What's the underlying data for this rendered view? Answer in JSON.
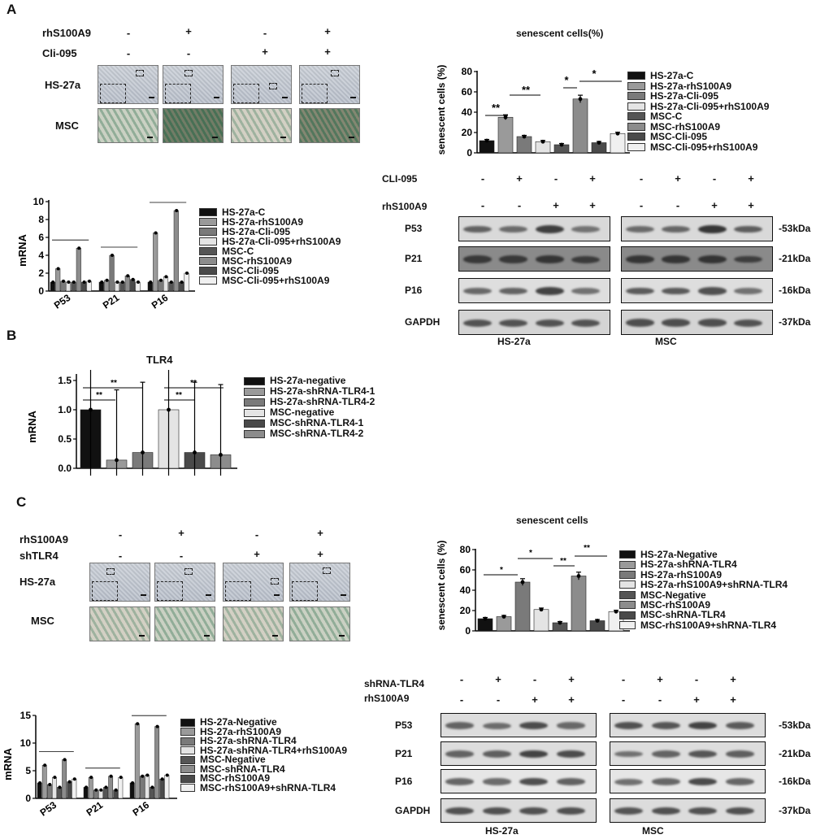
{
  "panels": {
    "A": "A",
    "B": "B",
    "C": "C"
  },
  "panelA": {
    "row_labels": [
      "rhS100A9",
      "Cli-095"
    ],
    "signs": [
      [
        "-",
        "+",
        "-",
        "+"
      ],
      [
        "-",
        "-",
        "+",
        "+"
      ]
    ],
    "image_labels": [
      "HS-27a",
      "MSC"
    ],
    "senescent_title": "senescent cells(%)",
    "senescent_ylabel": "senescent cells (%)",
    "senescent_legend": [
      "HS-27a-C",
      "HS-27a-rhS100A9",
      "HS-27a-Cli-095",
      "HS-27a-Cli-095+rhS100A9",
      "MSC-C",
      "MSC-rhS100A9",
      "MSC-Cli-095",
      "MSC-Cli-095+rhS100A9"
    ],
    "mrna_ylabel": "mRNA",
    "mrna_legend": [
      "HS-27a-C",
      "HS-27a-rhS100A9",
      "HS-27a-Cli-095",
      "HS-27a-Cli-095+rhS100A9",
      "MSC-C",
      "MSC-rhS100A9",
      "MSC-Cli-095",
      "MSC-Cli-095+rhS100A9"
    ],
    "wb_row_labels": [
      "CLI-095",
      "rhS100A9"
    ],
    "wb_signs": [
      [
        "-",
        "+",
        "-",
        "+",
        "-",
        "+",
        "-",
        "+"
      ],
      [
        "-",
        "-",
        "+",
        "+",
        "-",
        "-",
        "+",
        "+"
      ]
    ],
    "wb_proteins": [
      "P53",
      "P21",
      "P16",
      "GAPDH"
    ],
    "wb_sizes": [
      "-53kDa",
      "-21kDa",
      "-16kDa",
      "-37kDa"
    ],
    "wb_groups": [
      "HS-27a",
      "MSC"
    ]
  },
  "panelB": {
    "title": "TLR4",
    "ylabel": "mRNA",
    "legend": [
      "HS-27a-negative",
      "HS-27a-shRNA-TLR4-1",
      "HS-27a-shRNA-TLR4-2",
      "MSC-negative",
      "MSC-shRNA-TLR4-1",
      "MSC-shRNA-TLR4-2"
    ]
  },
  "panelC": {
    "row_labels": [
      "rhS100A9",
      "shTLR4"
    ],
    "signs": [
      [
        "-",
        "+",
        "-",
        "+"
      ],
      [
        "-",
        "-",
        "+",
        "+"
      ]
    ],
    "image_labels": [
      "HS-27a",
      "MSC"
    ],
    "senescent_title": "senescent cells",
    "senescent_ylabel": "senescent cells (%)",
    "senescent_legend": [
      "HS-27a-Negative",
      "HS-27a-shRNA-TLR4",
      "HS-27a-rhS100A9",
      "HS-27a-rhS100A9+shRNA-TLR4",
      "MSC-Negative",
      "MSC-rhS100A9",
      "MSC-shRNA-TLR4",
      "MSC-rhS100A9+shRNA-TLR4"
    ],
    "mrna_ylabel": "mRNA",
    "mrna_legend": [
      "HS-27a-Negative",
      "HS-27a-rhS100A9",
      "HS-27a-shRNA-TLR4",
      "HS-27a-shRNA-TLR4+rhS100A9",
      "MSC-Negative",
      "MSC-shRNA-TLR4",
      "MSC-rhS100A9",
      "MSC-rhS100A9+shRNA-TLR4"
    ],
    "wb_row_labels": [
      "shRNA-TLR4",
      "rhS100A9"
    ],
    "wb_signs": [
      [
        "-",
        "+",
        "-",
        "+",
        "-",
        "+",
        "-",
        "+"
      ],
      [
        "-",
        "-",
        "+",
        "+",
        "-",
        "-",
        "+",
        "+"
      ]
    ],
    "wb_proteins": [
      "P53",
      "P21",
      "P16",
      "GAPDH"
    ],
    "wb_sizes": [
      "-53kDa",
      "-21kDa",
      "-16kDa",
      "-37kDa"
    ],
    "wb_groups": [
      "HS-27a",
      "MSC"
    ]
  },
  "colors": {
    "series": [
      "#111111",
      "#9a9a9a",
      "#7a7a7a",
      "#e4e4e4",
      "#555555",
      "#8c8c8c",
      "#4a4a4a",
      "#f0f0f0"
    ]
  },
  "chart_data": [
    {
      "id": "A-senescent",
      "type": "bar",
      "title": "senescent cells(%)",
      "ylabel": "senescent cells (%)",
      "ylim": [
        0,
        80
      ],
      "yticks": [
        0,
        20,
        40,
        60,
        80
      ],
      "series": [
        {
          "name": "HS-27a-C",
          "values": [
            12
          ]
        },
        {
          "name": "HS-27a-rhS100A9",
          "values": [
            35
          ]
        },
        {
          "name": "HS-27a-Cli-095",
          "values": [
            16
          ]
        },
        {
          "name": "HS-27a-Cli-095+rhS100A9",
          "values": [
            11
          ]
        },
        {
          "name": "MSC-C",
          "values": [
            8
          ]
        },
        {
          "name": "MSC-rhS100A9",
          "values": [
            53
          ]
        },
        {
          "name": "MSC-Cli-095",
          "values": [
            10
          ]
        },
        {
          "name": "MSC-Cli-095+rhS100A9",
          "values": [
            19
          ]
        }
      ],
      "annotations": [
        "**",
        "**",
        "*",
        "*"
      ]
    },
    {
      "id": "A-mrna",
      "type": "bar",
      "ylabel": "mRNA",
      "categories": [
        "P53",
        "P21",
        "P16"
      ],
      "ylim": [
        0,
        10
      ],
      "yticks": [
        0,
        2,
        4,
        6,
        8,
        10
      ],
      "series": [
        {
          "name": "HS-27a-C",
          "values": [
            1.0,
            1.0,
            1.0
          ]
        },
        {
          "name": "HS-27a-rhS100A9",
          "values": [
            2.5,
            1.2,
            6.5
          ]
        },
        {
          "name": "HS-27a-Cli-095",
          "values": [
            1.1,
            4.0,
            1.2
          ]
        },
        {
          "name": "HS-27a-Cli-095+rhS100A9",
          "values": [
            1.0,
            1.0,
            1.6
          ]
        },
        {
          "name": "MSC-C",
          "values": [
            1.0,
            1.0,
            1.0
          ]
        },
        {
          "name": "MSC-rhS100A9",
          "values": [
            4.8,
            1.7,
            9.0
          ]
        },
        {
          "name": "MSC-Cli-095",
          "values": [
            1.0,
            1.3,
            1.0
          ]
        },
        {
          "name": "MSC-Cli-095+rhS100A9",
          "values": [
            1.1,
            1.0,
            2.0
          ]
        }
      ]
    },
    {
      "id": "B-tlr4",
      "type": "bar",
      "title": "TLR4",
      "ylabel": "mRNA",
      "ylim": [
        0,
        1.5
      ],
      "yticks": [
        0.0,
        0.5,
        1.0,
        1.5
      ],
      "series": [
        {
          "name": "HS-27a-negative",
          "values": [
            1.0
          ]
        },
        {
          "name": "HS-27a-shRNA-TLR4-1",
          "values": [
            0.14
          ]
        },
        {
          "name": "HS-27a-shRNA-TLR4-2",
          "values": [
            0.27
          ]
        },
        {
          "name": "MSC-negative",
          "values": [
            1.0
          ]
        },
        {
          "name": "MSC-shRNA-TLR4-1",
          "values": [
            0.27
          ]
        },
        {
          "name": "MSC-shRNA-TLR4-2",
          "values": [
            0.23
          ]
        }
      ]
    },
    {
      "id": "C-senescent",
      "type": "bar",
      "title": "senescent cells",
      "ylabel": "senescent cells (%)",
      "ylim": [
        0,
        80
      ],
      "yticks": [
        0,
        20,
        40,
        60,
        80
      ],
      "series": [
        {
          "name": "HS-27a-Negative",
          "values": [
            12
          ]
        },
        {
          "name": "HS-27a-shRNA-TLR4",
          "values": [
            14
          ]
        },
        {
          "name": "HS-27a-rhS100A9",
          "values": [
            48
          ]
        },
        {
          "name": "HS-27a-rhS100A9+shRNA-TLR4",
          "values": [
            21
          ]
        },
        {
          "name": "MSC-Negative",
          "values": [
            8
          ]
        },
        {
          "name": "MSC-rhS100A9",
          "values": [
            54
          ]
        },
        {
          "name": "MSC-shRNA-TLR4",
          "values": [
            10
          ]
        },
        {
          "name": "MSC-rhS100A9+shRNA-TLR4",
          "values": [
            19
          ]
        }
      ]
    },
    {
      "id": "C-mrna",
      "type": "bar",
      "ylabel": "mRNA",
      "categories": [
        "P53",
        "P21",
        "P16"
      ],
      "ylim": [
        0,
        15
      ],
      "yticks": [
        0,
        5,
        10,
        15
      ],
      "series": [
        {
          "name": "HS-27a-Negative",
          "values": [
            2.8,
            2.0,
            2.8
          ]
        },
        {
          "name": "HS-27a-rhS100A9",
          "values": [
            6.0,
            3.8,
            13.5
          ]
        },
        {
          "name": "HS-27a-shRNA-TLR4",
          "values": [
            2.5,
            1.5,
            4.0
          ]
        },
        {
          "name": "HS-27a-shRNA-TLR4+rhS100A9",
          "values": [
            3.8,
            1.5,
            4.2
          ]
        },
        {
          "name": "MSC-Negative",
          "values": [
            2.0,
            2.0,
            2.0
          ]
        },
        {
          "name": "MSC-shRNA-TLR4",
          "values": [
            7.0,
            4.0,
            13.0
          ]
        },
        {
          "name": "MSC-rhS100A9",
          "values": [
            3.0,
            1.5,
            3.5
          ]
        },
        {
          "name": "MSC-rhS100A9+shRNA-TLR4",
          "values": [
            3.5,
            3.8,
            4.2
          ]
        }
      ]
    }
  ]
}
